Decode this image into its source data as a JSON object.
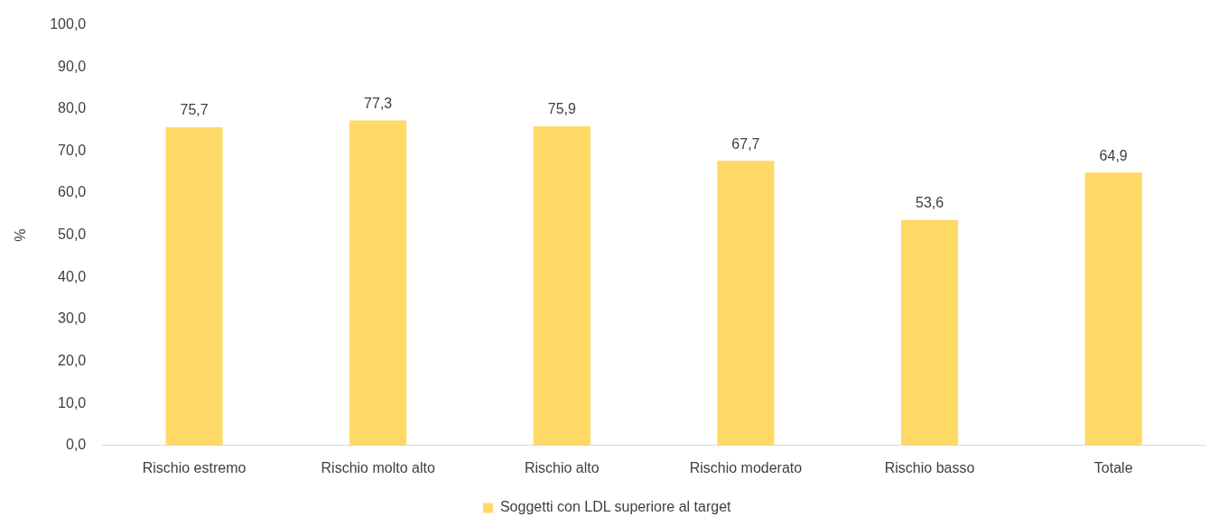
{
  "chart_data": {
    "type": "bar",
    "ylabel": "%",
    "categories": [
      "Rischio estremo",
      "Rischio molto alto",
      "Rischio alto",
      "Rischio moderato",
      "Rischio basso",
      "Totale"
    ],
    "series": [
      {
        "name": "Soggetti con LDL superiore al target",
        "color": "#ffd966",
        "values": [
          75.7,
          77.3,
          75.9,
          67.7,
          53.6,
          64.9
        ],
        "value_labels": [
          "75,7",
          "77,3",
          "75,9",
          "67,7",
          "53,6",
          "64,9"
        ]
      }
    ],
    "ylim": [
      0,
      100
    ],
    "yticks": [
      {
        "value": 0,
        "label": "0,0"
      },
      {
        "value": 10,
        "label": "10,0"
      },
      {
        "value": 20,
        "label": "20,0"
      },
      {
        "value": 30,
        "label": "30,0"
      },
      {
        "value": 40,
        "label": "40,0"
      },
      {
        "value": 50,
        "label": "50,0"
      },
      {
        "value": 60,
        "label": "60,0"
      },
      {
        "value": 70,
        "label": "70,0"
      },
      {
        "value": 80,
        "label": "80,0"
      },
      {
        "value": 90,
        "label": "90,0"
      },
      {
        "value": 100,
        "label": "100,0"
      }
    ],
    "grid": false,
    "legend": "bottom"
  }
}
